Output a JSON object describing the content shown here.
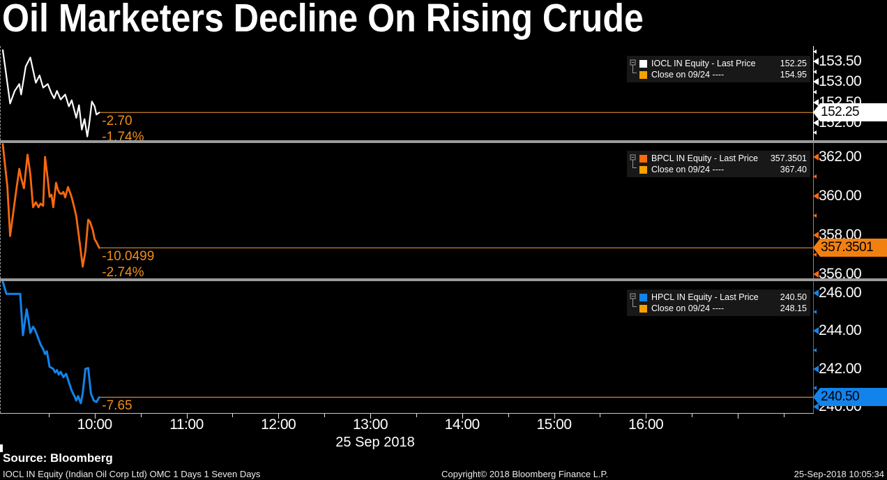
{
  "source_label": "Source: Bloomberg",
  "footer": {
    "left": "IOCL IN Equity (Indian Oil Corp Ltd) OMC 1 Days 1 Seven Days",
    "center": "Copyright© 2018 Bloomberg Finance L.P.",
    "right": "25-Sep-2018 10:05:34"
  },
  "colors": {
    "background": "#000000",
    "iocl_line": "#ffffff",
    "bpcl_line": "#f9690e",
    "hpcl_line": "#1283ea",
    "close_swatch": "#f5a100",
    "last_price_track_line": "#c8812e",
    "annotation_orange": "#ef8e1a",
    "panel_separator": "#9b9b9b"
  },
  "chart_data": {
    "type": "line",
    "title": "Oil Marketers Decline On Rising Crude",
    "grid": false,
    "legend_position": "top-right-inside-each-panel",
    "x_axis": {
      "date_label": "25 Sep 2018",
      "hour_min": 8.97,
      "hour_max": 17.82,
      "major_ticks": [
        {
          "h": 10,
          "label": "10:00"
        },
        {
          "h": 11,
          "label": "11:00"
        },
        {
          "h": 12,
          "label": "12:00"
        },
        {
          "h": 13,
          "label": "13:00"
        },
        {
          "h": 14,
          "label": "14:00"
        },
        {
          "h": 15,
          "label": "15:00"
        },
        {
          "h": 16,
          "label": "16:00"
        },
        {
          "h": 17,
          "label": ""
        }
      ],
      "minor_tick_hours": [
        9.5,
        10.5,
        11.5,
        12.5,
        13.5,
        14.5,
        15.5,
        16.5,
        17.5
      ]
    },
    "panels": [
      {
        "security": "IOCL IN Equity",
        "color": "#ffffff",
        "legend": [
          {
            "label": "IOCL IN Equity - Last Price",
            "value": "152.25",
            "swatch": "#ffffff"
          },
          {
            "label": "Close on 09/24 ----",
            "value": "154.95",
            "swatch": "#f5a100"
          }
        ],
        "last_price": 152.25,
        "prev_close": 154.95,
        "change": "-2.70",
        "change_pct": "-1.74%",
        "badge": {
          "text": "152.25",
          "bg": "#ffffff",
          "fg": "#000000"
        },
        "ylim": [
          151.57,
          153.88
        ],
        "yticks_major": [
          {
            "v": 153.5,
            "label": "153.50"
          },
          {
            "v": 153.0,
            "label": "153.00"
          },
          {
            "v": 152.5,
            "label": "152.50"
          },
          {
            "v": 152.0,
            "label": "152.00"
          }
        ],
        "yticks_minor": [
          153.75,
          153.25,
          152.75,
          152.25,
          151.75
        ],
        "series": [
          [
            9.0,
            153.78
          ],
          [
            9.03,
            153.3
          ],
          [
            9.08,
            152.47
          ],
          [
            9.13,
            152.78
          ],
          [
            9.18,
            152.95
          ],
          [
            9.2,
            152.69
          ],
          [
            9.25,
            153.38
          ],
          [
            9.3,
            153.6
          ],
          [
            9.33,
            153.29
          ],
          [
            9.36,
            152.98
          ],
          [
            9.4,
            153.16
          ],
          [
            9.44,
            152.86
          ],
          [
            9.49,
            152.95
          ],
          [
            9.53,
            152.72
          ],
          [
            9.56,
            152.6
          ],
          [
            9.59,
            152.78
          ],
          [
            9.63,
            152.57
          ],
          [
            9.68,
            152.69
          ],
          [
            9.72,
            152.4
          ],
          [
            9.75,
            152.55
          ],
          [
            9.8,
            152.12
          ],
          [
            9.83,
            152.43
          ],
          [
            9.86,
            151.83
          ],
          [
            9.89,
            152.09
          ],
          [
            9.92,
            151.66
          ],
          [
            9.94,
            151.95
          ],
          [
            9.97,
            152.52
          ],
          [
            10.0,
            152.4
          ],
          [
            10.02,
            152.2
          ],
          [
            10.05,
            152.25
          ]
        ]
      },
      {
        "security": "BPCL IN Equity",
        "color": "#f9690e",
        "legend": [
          {
            "label": "BPCL IN Equity - Last Price",
            "value": "357.3501",
            "swatch": "#f9690e"
          },
          {
            "label": "Close on 09/24 ----",
            "value": "367.40",
            "swatch": "#f5a100"
          }
        ],
        "last_price": 357.3501,
        "prev_close": 367.4,
        "change": "-10.0499",
        "change_pct": "-2.74%",
        "badge": {
          "text": "357.3501",
          "bg": "#f28011",
          "fg": "#000000"
        },
        "ylim": [
          355.79,
          362.71
        ],
        "yticks_major": [
          {
            "v": 362.0,
            "label": "362.00"
          },
          {
            "v": 360.0,
            "label": "360.00"
          },
          {
            "v": 358.0,
            "label": "358.00"
          },
          {
            "v": 356.0,
            "label": "356.00"
          }
        ],
        "yticks_minor": [
          361.0,
          359.0,
          357.0
        ],
        "series": [
          [
            9.0,
            362.65
          ],
          [
            9.05,
            360.5
          ],
          [
            9.08,
            357.96
          ],
          [
            9.15,
            360.4
          ],
          [
            9.18,
            361.39
          ],
          [
            9.2,
            360.93
          ],
          [
            9.23,
            360.4
          ],
          [
            9.27,
            362.11
          ],
          [
            9.3,
            361.11
          ],
          [
            9.33,
            359.43
          ],
          [
            9.36,
            359.68
          ],
          [
            9.39,
            359.43
          ],
          [
            9.41,
            359.61
          ],
          [
            9.44,
            359.5
          ],
          [
            9.46,
            362.0
          ],
          [
            9.49,
            360.86
          ],
          [
            9.51,
            359.96
          ],
          [
            9.53,
            360.07
          ],
          [
            9.55,
            359.43
          ],
          [
            9.58,
            360.68
          ],
          [
            9.6,
            360.32
          ],
          [
            9.62,
            360.14
          ],
          [
            9.64,
            360.11
          ],
          [
            9.66,
            360.21
          ],
          [
            9.68,
            359.93
          ],
          [
            9.71,
            360.46
          ],
          [
            9.73,
            360.21
          ],
          [
            9.75,
            359.93
          ],
          [
            9.78,
            359.39
          ],
          [
            9.8,
            358.96
          ],
          [
            9.84,
            357.54
          ],
          [
            9.87,
            356.39
          ],
          [
            9.9,
            357.18
          ],
          [
            9.93,
            358.79
          ],
          [
            9.95,
            358.68
          ],
          [
            9.98,
            358.25
          ],
          [
            10.0,
            357.79
          ],
          [
            10.02,
            357.64
          ],
          [
            10.05,
            357.35
          ]
        ]
      },
      {
        "security": "HPCL IN Equity",
        "color": "#1283ea",
        "legend": [
          {
            "label": "HPCL IN Equity - Last Price",
            "value": "240.50",
            "swatch": "#1283ea"
          },
          {
            "label": "Close on 09/24 ----",
            "value": "248.15",
            "swatch": "#f5a100"
          }
        ],
        "last_price": 240.5,
        "prev_close": 248.15,
        "change": "-7.65",
        "change_pct": "",
        "badge": {
          "text": "240.50",
          "bg": "#1283ea",
          "fg": "#000000"
        },
        "ylim": [
          239.67,
          246.63
        ],
        "yticks_major": [
          {
            "v": 246.0,
            "label": "246.00"
          },
          {
            "v": 244.0,
            "label": "244.00"
          },
          {
            "v": 242.0,
            "label": "242.00"
          },
          {
            "v": 240.0,
            "label": "240.00"
          }
        ],
        "yticks_minor": [
          245.0,
          243.0,
          241.0
        ],
        "series": [
          [
            9.0,
            246.6
          ],
          [
            9.04,
            245.96
          ],
          [
            9.19,
            245.96
          ],
          [
            9.22,
            243.78
          ],
          [
            9.26,
            245.15
          ],
          [
            9.28,
            244.6
          ],
          [
            9.3,
            243.9
          ],
          [
            9.33,
            244.22
          ],
          [
            9.35,
            244.07
          ],
          [
            9.38,
            243.7
          ],
          [
            9.41,
            243.3
          ],
          [
            9.44,
            243.04
          ],
          [
            9.46,
            242.78
          ],
          [
            9.48,
            242.93
          ],
          [
            9.51,
            242.11
          ],
          [
            9.55,
            242.0
          ],
          [
            9.57,
            241.81
          ],
          [
            9.59,
            241.93
          ],
          [
            9.61,
            241.7
          ],
          [
            9.63,
            241.85
          ],
          [
            9.66,
            241.56
          ],
          [
            9.69,
            241.74
          ],
          [
            9.71,
            241.44
          ],
          [
            9.75,
            240.85
          ],
          [
            9.78,
            240.56
          ],
          [
            9.8,
            240.33
          ],
          [
            9.82,
            240.56
          ],
          [
            9.85,
            240.19
          ],
          [
            9.87,
            240.7
          ],
          [
            9.9,
            242.0
          ],
          [
            9.93,
            242.04
          ],
          [
            9.96,
            240.7
          ],
          [
            9.99,
            240.33
          ],
          [
            10.02,
            240.25
          ],
          [
            10.05,
            240.5
          ]
        ]
      }
    ]
  }
}
